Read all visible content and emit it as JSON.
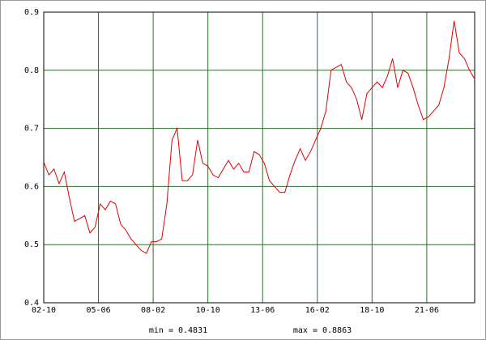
{
  "chart_data": {
    "type": "line",
    "x": [
      0,
      3,
      6,
      9,
      12,
      15,
      18,
      21,
      24,
      27,
      30,
      33,
      36,
      39,
      42,
      45,
      48,
      51,
      54,
      57,
      60,
      63,
      66,
      69,
      72,
      75,
      78,
      81,
      84,
      87,
      90,
      93,
      96,
      99,
      102,
      105,
      108,
      111,
      114,
      117,
      120,
      123,
      126,
      129,
      132,
      135,
      138,
      141,
      144,
      147,
      150,
      153,
      156,
      159,
      162,
      165,
      168,
      171,
      174,
      177,
      180,
      183,
      186,
      189,
      192,
      195,
      198,
      201,
      204,
      207,
      210,
      213,
      216,
      219,
      222,
      225,
      228,
      231,
      234,
      237,
      240,
      243,
      246,
      249,
      252
    ],
    "series": [
      {
        "color": "#e00000",
        "values": [
          0.642,
          0.62,
          0.63,
          0.605,
          0.625,
          0.58,
          0.54,
          0.545,
          0.55,
          0.52,
          0.53,
          0.57,
          0.56,
          0.575,
          0.57,
          0.535,
          0.525,
          0.51,
          0.5,
          0.49,
          0.485,
          0.505,
          0.505,
          0.51,
          0.57,
          0.68,
          0.7,
          0.61,
          0.61,
          0.62,
          0.68,
          0.64,
          0.635,
          0.62,
          0.615,
          0.63,
          0.645,
          0.63,
          0.64,
          0.625,
          0.625,
          0.66,
          0.655,
          0.64,
          0.61,
          0.6,
          0.59,
          0.59,
          0.62,
          0.645,
          0.665,
          0.645,
          0.66,
          0.68,
          0.7,
          0.73,
          0.8,
          0.805,
          0.81,
          0.78,
          0.77,
          0.75,
          0.715,
          0.76,
          0.77,
          0.78,
          0.77,
          0.79,
          0.82,
          0.77,
          0.8,
          0.795,
          0.77,
          0.74,
          0.715,
          0.72,
          0.73,
          0.74,
          0.77,
          0.82,
          0.885,
          0.83,
          0.82,
          0.8,
          0.785
        ]
      }
    ],
    "xlim": [
      0,
      252
    ],
    "xticks": [
      {
        "value": 0,
        "label": "02-10"
      },
      {
        "value": 32,
        "label": "05-06"
      },
      {
        "value": 64,
        "label": "08-02"
      },
      {
        "value": 96,
        "label": "10-10"
      },
      {
        "value": 128,
        "label": "13-06"
      },
      {
        "value": 160,
        "label": "16-02"
      },
      {
        "value": 192,
        "label": "18-10"
      },
      {
        "value": 224,
        "label": "21-06"
      }
    ],
    "ylim": [
      0.4,
      0.9
    ],
    "yticks": [
      0.4,
      0.5,
      0.6,
      0.7,
      0.8,
      0.9
    ],
    "grid": true,
    "grid_color": "#2e6b2e",
    "min_label": "min = 0.4831",
    "max_label": "max = 0.8863"
  }
}
